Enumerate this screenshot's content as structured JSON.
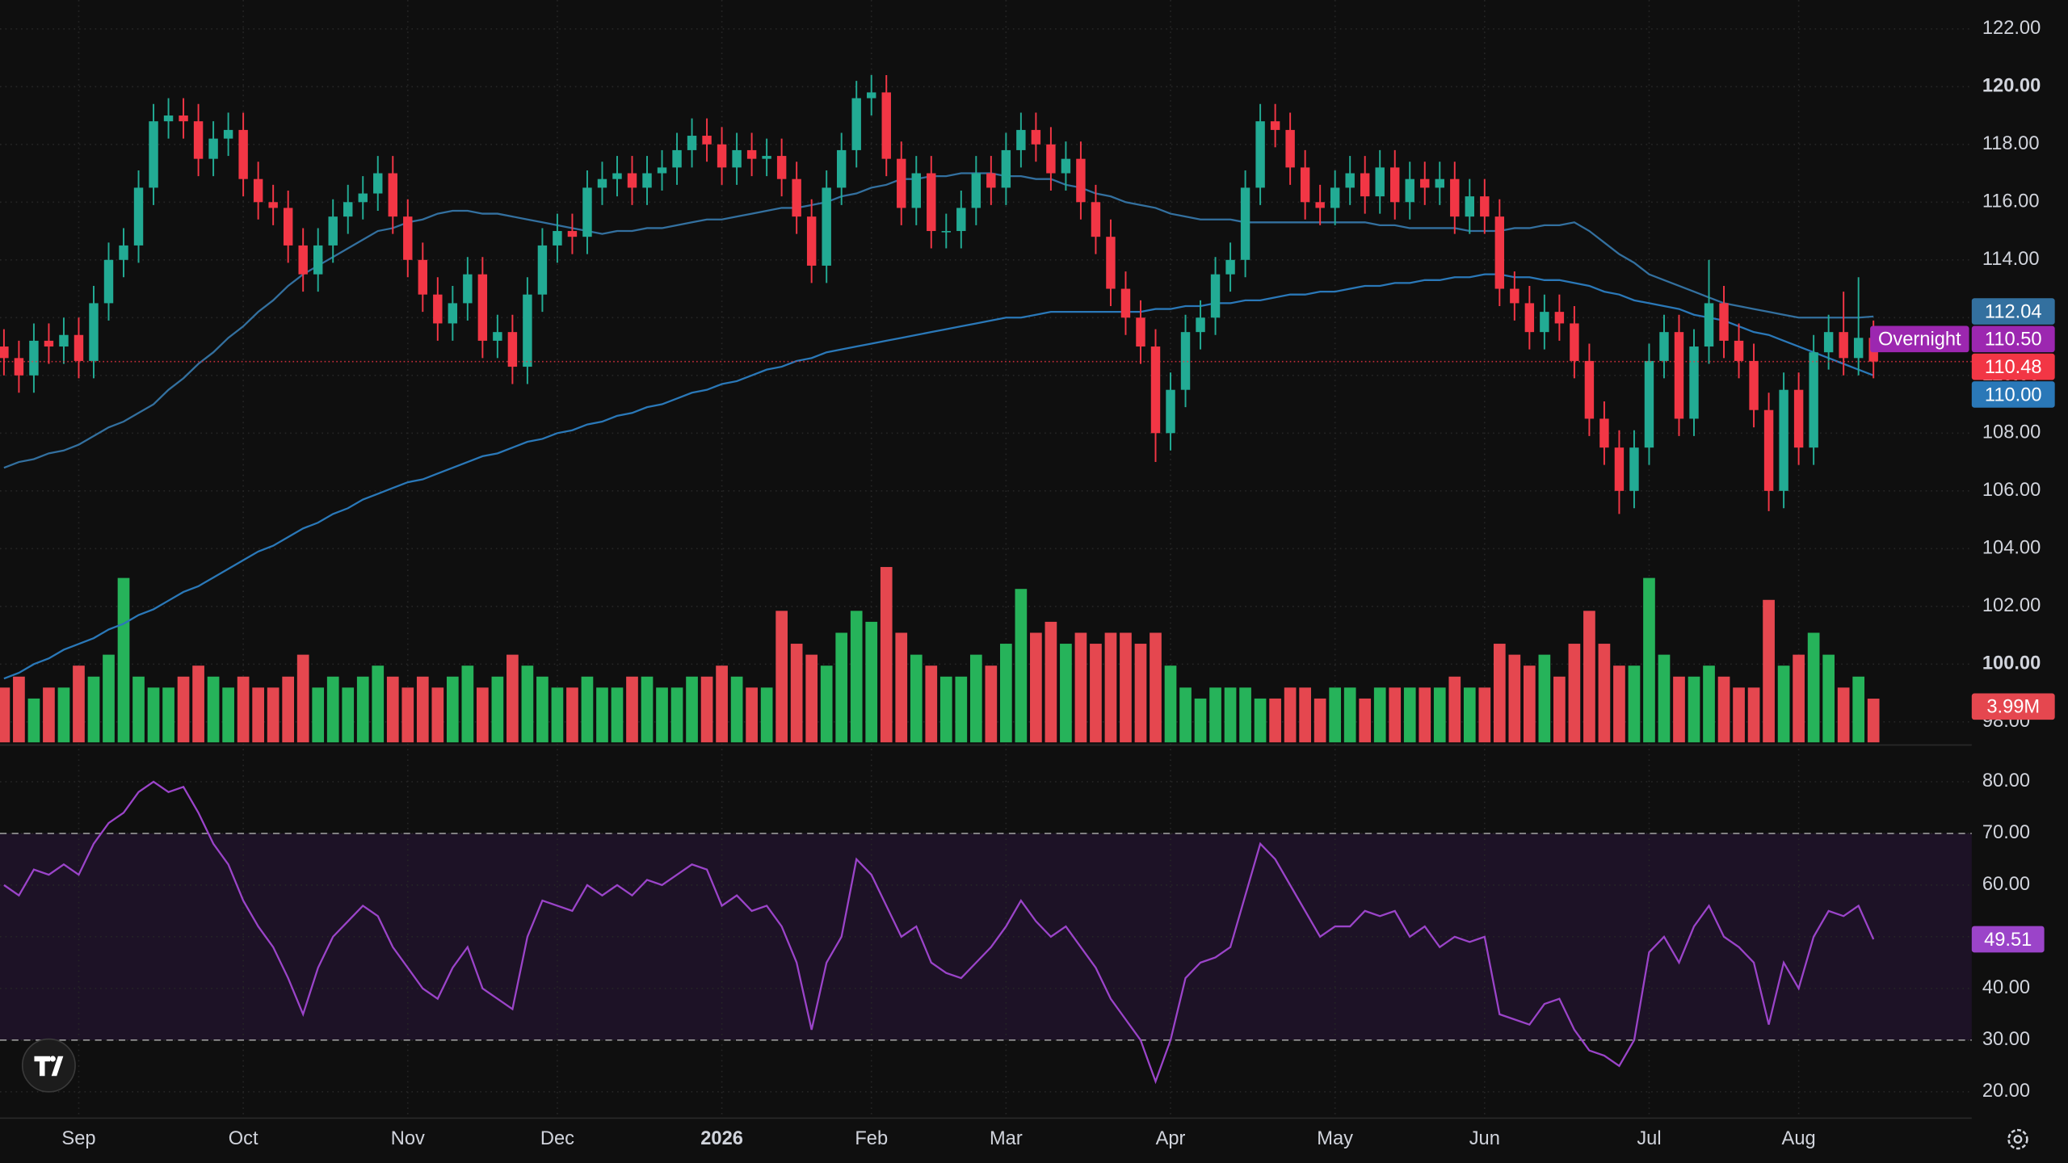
{
  "chart_data": [
    {
      "type": "candlestick",
      "categories": [
        null,
        null,
        null,
        null,
        null,
        "Sep",
        null,
        null,
        null,
        null,
        null,
        null,
        null,
        null,
        null,
        null,
        "Oct",
        null,
        null,
        null,
        null,
        null,
        null,
        null,
        null,
        null,
        null,
        "Nov",
        null,
        null,
        null,
        null,
        null,
        null,
        null,
        null,
        null,
        "Dec",
        null,
        null,
        null,
        null,
        null,
        null,
        null,
        null,
        null,
        null,
        "2026",
        null,
        null,
        null,
        null,
        null,
        null,
        null,
        null,
        null,
        "Feb",
        null,
        null,
        null,
        null,
        null,
        null,
        null,
        null,
        "Mar",
        null,
        null,
        null,
        null,
        null,
        null,
        null,
        null,
        null,
        null,
        "Apr",
        null,
        null,
        null,
        null,
        null,
        null,
        null,
        null,
        null,
        null,
        "May",
        null,
        null,
        null,
        null,
        null,
        null,
        null,
        null,
        null,
        "Jun",
        null,
        null,
        null,
        null,
        null,
        null,
        null,
        null,
        null,
        null,
        "Jul",
        null,
        null,
        null,
        null,
        null,
        null,
        null,
        null,
        null,
        "Aug",
        null,
        null,
        null,
        null,
        null
      ],
      "open": [
        111.0,
        110.6,
        110.0,
        111.2,
        111.0,
        111.4,
        110.5,
        112.5,
        114.0,
        114.5,
        116.5,
        118.8,
        119.0,
        118.8,
        117.5,
        118.2,
        118.5,
        116.8,
        116.0,
        115.8,
        114.5,
        113.5,
        114.5,
        115.5,
        116.0,
        116.3,
        117.0,
        115.5,
        114.0,
        112.8,
        111.8,
        112.5,
        113.5,
        111.2,
        111.5,
        110.3,
        112.8,
        114.5,
        115.0,
        114.8,
        116.5,
        116.8,
        117.0,
        116.5,
        117.0,
        117.2,
        117.8,
        118.3,
        118.0,
        117.2,
        117.8,
        117.5,
        117.6,
        116.8,
        115.5,
        113.8,
        116.5,
        117.8,
        119.6,
        119.8,
        117.5,
        115.8,
        117.0,
        115.0,
        115.0,
        115.8,
        117.0,
        116.5,
        117.8,
        118.5,
        118.0,
        117.0,
        117.5,
        116.0,
        114.8,
        113.0,
        112.0,
        111.0,
        108.0,
        109.5,
        111.5,
        112.0,
        113.5,
        114.0,
        116.5,
        118.8,
        118.5,
        117.2,
        116.0,
        115.8,
        116.5,
        117.0,
        116.2,
        117.2,
        116.0,
        116.8,
        116.5,
        116.8,
        115.5,
        116.2,
        115.5,
        113.0,
        112.5,
        111.5,
        112.2,
        111.8,
        110.5,
        108.5,
        107.5,
        106.0,
        107.5,
        110.5,
        111.5,
        108.5,
        111.0,
        112.5,
        111.2,
        110.5,
        108.8,
        106.0,
        109.5,
        107.5,
        110.8,
        111.5,
        110.6,
        111.3
      ],
      "high": [
        111.6,
        111.2,
        111.8,
        111.8,
        112.0,
        112.0,
        113.1,
        114.6,
        115.1,
        117.1,
        119.4,
        119.6,
        119.6,
        119.4,
        118.8,
        119.1,
        119.1,
        117.4,
        116.6,
        116.4,
        115.1,
        115.1,
        116.1,
        116.6,
        116.9,
        117.6,
        117.6,
        116.1,
        114.6,
        113.4,
        113.1,
        114.1,
        114.1,
        112.1,
        112.1,
        113.4,
        115.1,
        115.6,
        115.6,
        117.1,
        117.4,
        117.6,
        117.6,
        117.6,
        117.8,
        118.4,
        118.9,
        118.9,
        118.6,
        118.4,
        118.4,
        118.2,
        118.2,
        117.4,
        116.1,
        117.1,
        118.4,
        120.2,
        120.4,
        120.4,
        118.1,
        117.6,
        117.6,
        115.6,
        116.4,
        117.6,
        117.6,
        118.4,
        119.1,
        119.1,
        118.6,
        118.1,
        118.1,
        116.6,
        115.4,
        113.6,
        112.6,
        111.6,
        110.1,
        112.1,
        112.6,
        114.1,
        114.6,
        117.1,
        119.4,
        119.4,
        119.1,
        117.8,
        116.6,
        117.1,
        117.6,
        117.6,
        117.8,
        117.8,
        117.4,
        117.4,
        117.4,
        117.4,
        116.8,
        116.8,
        116.1,
        113.6,
        113.1,
        112.8,
        112.8,
        112.4,
        111.1,
        109.1,
        108.1,
        108.1,
        111.1,
        112.1,
        112.1,
        111.6,
        114.0,
        113.1,
        111.8,
        111.1,
        109.4,
        110.1,
        110.1,
        111.4,
        112.1,
        112.9,
        113.4,
        111.9
      ],
      "low": [
        110.0,
        109.4,
        109.4,
        110.4,
        110.4,
        109.9,
        109.9,
        111.9,
        113.4,
        113.9,
        115.9,
        118.2,
        118.2,
        116.9,
        116.9,
        117.6,
        116.2,
        115.4,
        115.2,
        113.9,
        112.9,
        112.9,
        113.9,
        114.9,
        115.4,
        115.7,
        114.9,
        113.4,
        112.2,
        111.2,
        111.2,
        111.9,
        110.6,
        110.6,
        109.7,
        109.7,
        112.2,
        113.9,
        114.2,
        114.2,
        115.9,
        116.2,
        115.9,
        115.9,
        116.4,
        116.6,
        117.2,
        117.4,
        116.6,
        116.6,
        116.9,
        116.9,
        116.2,
        114.9,
        113.2,
        113.2,
        115.9,
        117.2,
        119.0,
        116.9,
        115.2,
        115.2,
        114.4,
        114.4,
        114.4,
        115.2,
        115.9,
        115.9,
        117.2,
        117.4,
        116.4,
        116.4,
        115.4,
        114.2,
        112.4,
        111.4,
        110.4,
        107.0,
        107.4,
        108.9,
        110.9,
        111.4,
        112.9,
        113.4,
        115.9,
        117.9,
        116.6,
        115.4,
        115.2,
        115.2,
        115.9,
        115.6,
        115.6,
        115.4,
        115.4,
        115.9,
        115.9,
        114.9,
        114.9,
        114.9,
        112.4,
        111.9,
        110.9,
        110.9,
        111.2,
        109.9,
        107.9,
        106.9,
        105.2,
        105.4,
        106.9,
        109.9,
        107.9,
        107.9,
        110.4,
        110.6,
        109.9,
        108.2,
        105.3,
        105.4,
        106.9,
        106.9,
        110.2,
        110.0,
        110.0,
        109.9
      ],
      "close": [
        110.6,
        110.0,
        111.2,
        111.0,
        111.4,
        110.5,
        112.5,
        114.0,
        114.5,
        116.5,
        118.8,
        119.0,
        118.8,
        117.5,
        118.2,
        118.5,
        116.8,
        116.0,
        115.8,
        114.5,
        113.5,
        114.5,
        115.5,
        116.0,
        116.3,
        117.0,
        115.5,
        114.0,
        112.8,
        111.8,
        112.5,
        113.5,
        111.2,
        111.5,
        110.3,
        112.8,
        114.5,
        115.0,
        114.8,
        116.5,
        116.8,
        117.0,
        116.5,
        117.0,
        117.2,
        117.8,
        118.3,
        118.0,
        117.2,
        117.8,
        117.5,
        117.6,
        116.8,
        115.5,
        113.8,
        116.5,
        117.8,
        119.6,
        119.8,
        117.5,
        115.8,
        117.0,
        115.0,
        115.0,
        115.8,
        117.0,
        116.5,
        117.8,
        118.5,
        118.0,
        117.0,
        117.5,
        116.0,
        114.8,
        113.0,
        112.0,
        111.0,
        108.0,
        109.5,
        111.5,
        112.0,
        113.5,
        114.0,
        116.5,
        118.8,
        118.5,
        117.2,
        116.0,
        115.8,
        116.5,
        117.0,
        116.2,
        117.2,
        116.0,
        116.8,
        116.5,
        116.8,
        115.5,
        116.2,
        115.5,
        113.0,
        112.5,
        111.5,
        112.2,
        111.8,
        110.5,
        108.5,
        107.5,
        106.0,
        107.5,
        110.5,
        111.5,
        108.5,
        111.0,
        112.5,
        111.2,
        110.5,
        108.8,
        106.0,
        109.5,
        107.5,
        110.8,
        111.5,
        110.6,
        111.3,
        110.48
      ],
      "up_color": "#22ab94",
      "down_color": "#f23645",
      "ylim": [
        97.2,
        123.0
      ],
      "yticks": [
        {
          "value": 122,
          "label": "122.00"
        },
        {
          "value": 120,
          "label": "120.00"
        },
        {
          "value": 118,
          "label": "118.00"
        },
        {
          "value": 116,
          "label": "116.00"
        },
        {
          "value": 114,
          "label": "114.00"
        },
        {
          "value": 112,
          "label": "112.00"
        },
        {
          "value": 110,
          "label": "110.00"
        },
        {
          "value": 108,
          "label": "108.00"
        },
        {
          "value": 106,
          "label": "106.00"
        },
        {
          "value": 104,
          "label": "104.00"
        },
        {
          "value": 102,
          "label": "102.00"
        },
        {
          "value": 100,
          "label": "100.00"
        },
        {
          "value": 98,
          "label": "98.00"
        }
      ],
      "grid": true,
      "moving_averages": [
        {
          "color": "#33709f",
          "values": [
            106.8,
            107.0,
            107.1,
            107.3,
            107.4,
            107.6,
            107.9,
            108.2,
            108.4,
            108.7,
            109.0,
            109.5,
            109.9,
            110.4,
            110.8,
            111.3,
            111.7,
            112.2,
            112.6,
            113.1,
            113.5,
            113.8,
            114.1,
            114.4,
            114.7,
            115.0,
            115.1,
            115.3,
            115.4,
            115.6,
            115.7,
            115.7,
            115.6,
            115.6,
            115.5,
            115.4,
            115.3,
            115.2,
            115.1,
            115.0,
            114.9,
            115.0,
            115.0,
            115.1,
            115.1,
            115.2,
            115.3,
            115.4,
            115.4,
            115.5,
            115.6,
            115.7,
            115.8,
            115.8,
            115.9,
            116.0,
            116.2,
            116.3,
            116.5,
            116.6,
            116.8,
            116.8,
            116.9,
            116.9,
            117.0,
            117.0,
            117.0,
            116.9,
            116.9,
            116.8,
            116.8,
            116.6,
            116.5,
            116.3,
            116.2,
            116.0,
            115.9,
            115.8,
            115.6,
            115.5,
            115.4,
            115.4,
            115.4,
            115.3,
            115.3,
            115.3,
            115.3,
            115.3,
            115.3,
            115.3,
            115.3,
            115.3,
            115.2,
            115.2,
            115.1,
            115.1,
            115.1,
            115.1,
            115.0,
            115.0,
            115.0,
            115.1,
            115.1,
            115.2,
            115.2,
            115.3,
            115.0,
            114.6,
            114.2,
            113.9,
            113.5,
            113.3,
            113.1,
            112.9,
            112.7,
            112.5,
            112.4,
            112.3,
            112.2,
            112.1,
            112.0,
            112.0,
            112.0,
            112.0,
            112.0,
            112.04
          ]
        },
        {
          "color": "#2a78b8",
          "last_label": "110.00",
          "values": [
            99.5,
            99.7,
            100.0,
            100.2,
            100.5,
            100.7,
            100.9,
            101.2,
            101.4,
            101.7,
            101.9,
            102.2,
            102.5,
            102.7,
            103.0,
            103.3,
            103.6,
            103.9,
            104.1,
            104.4,
            104.7,
            104.9,
            105.2,
            105.4,
            105.7,
            105.9,
            106.1,
            106.3,
            106.4,
            106.6,
            106.8,
            107.0,
            107.2,
            107.3,
            107.5,
            107.7,
            107.8,
            108.0,
            108.1,
            108.3,
            108.4,
            108.6,
            108.7,
            108.9,
            109.0,
            109.2,
            109.4,
            109.5,
            109.7,
            109.8,
            110.0,
            110.2,
            110.3,
            110.5,
            110.6,
            110.8,
            110.9,
            111.0,
            111.1,
            111.2,
            111.3,
            111.4,
            111.5,
            111.6,
            111.7,
            111.8,
            111.9,
            112.0,
            112.0,
            112.1,
            112.2,
            112.2,
            112.2,
            112.2,
            112.2,
            112.2,
            112.2,
            112.3,
            112.3,
            112.4,
            112.4,
            112.5,
            112.5,
            112.6,
            112.6,
            112.7,
            112.8,
            112.8,
            112.9,
            112.9,
            113.0,
            113.1,
            113.1,
            113.2,
            113.2,
            113.3,
            113.3,
            113.4,
            113.4,
            113.5,
            113.5,
            113.4,
            113.4,
            113.3,
            113.3,
            113.2,
            113.1,
            112.9,
            112.8,
            112.6,
            112.5,
            112.4,
            112.3,
            112.1,
            112.0,
            111.9,
            111.7,
            111.5,
            111.4,
            111.2,
            111.0,
            110.8,
            110.6,
            110.4,
            110.2,
            110.0
          ]
        }
      ],
      "overnight": {
        "label": "Overnight",
        "value": 110.5,
        "value_label": "110.50",
        "color": "#9c27b0"
      },
      "volume": {
        "up_color": "#26b35a",
        "down_color": "#e5474f",
        "last_label": "3.99M",
        "values": [
          5,
          6,
          4,
          5,
          5,
          7,
          6,
          8,
          15,
          6,
          5,
          5,
          6,
          7,
          6,
          5,
          6,
          5,
          5,
          6,
          8,
          5,
          6,
          5,
          6,
          7,
          6,
          5,
          6,
          5,
          6,
          7,
          5,
          6,
          8,
          7,
          6,
          5,
          5,
          6,
          5,
          5,
          6,
          6,
          5,
          5,
          6,
          6,
          7,
          6,
          5,
          5,
          12,
          9,
          8,
          7,
          10,
          12,
          11,
          16,
          10,
          8,
          7,
          6,
          6,
          8,
          7,
          9,
          14,
          10,
          11,
          9,
          10,
          9,
          10,
          10,
          9,
          10,
          7,
          5,
          4,
          5,
          5,
          5,
          4,
          4,
          5,
          5,
          4,
          5,
          5,
          4,
          5,
          5,
          5,
          5,
          5,
          6,
          5,
          5,
          9,
          8,
          7,
          8,
          6,
          9,
          12,
          9,
          7,
          7,
          15,
          8,
          6,
          6,
          7,
          6,
          5,
          5,
          13,
          7,
          8,
          10,
          8,
          5,
          6,
          3.99
        ]
      }
    },
    {
      "type": "line",
      "color": "#9b44c9",
      "values": [
        60,
        58,
        63,
        62,
        64,
        62,
        68,
        72,
        74,
        78,
        80,
        78,
        79,
        74,
        68,
        64,
        57,
        52,
        48,
        42,
        35,
        44,
        50,
        53,
        56,
        54,
        48,
        44,
        40,
        38,
        44,
        48,
        40,
        38,
        36,
        50,
        57,
        56,
        55,
        60,
        58,
        60,
        58,
        61,
        60,
        62,
        64,
        63,
        56,
        58,
        55,
        56,
        52,
        45,
        32,
        45,
        50,
        65,
        62,
        56,
        50,
        52,
        45,
        43,
        42,
        45,
        48,
        52,
        57,
        53,
        50,
        52,
        48,
        44,
        38,
        34,
        30,
        22,
        30,
        42,
        45,
        46,
        48,
        58,
        68,
        65,
        60,
        55,
        50,
        52,
        52,
        55,
        54,
        55,
        50,
        52,
        48,
        50,
        49,
        50,
        35,
        34,
        33,
        37,
        38,
        32,
        28,
        27,
        25,
        30,
        47,
        50,
        45,
        52,
        56,
        50,
        48,
        45,
        33,
        45,
        40,
        50,
        55,
        54,
        56,
        49.51
      ],
      "ylim": [
        14.9,
        87.1
      ],
      "yticks": [
        {
          "value": 80,
          "label": "80.00"
        },
        {
          "value": 70,
          "label": "70.00"
        },
        {
          "value": 60,
          "label": "60.00"
        },
        {
          "value": 50,
          "label": "50.00"
        },
        {
          "value": 40,
          "label": "40.00"
        },
        {
          "value": 30,
          "label": "30.00"
        },
        {
          "value": 20,
          "label": "20.00"
        }
      ],
      "band": [
        30,
        70
      ],
      "band_color": "#1d1226"
    }
  ]
}
